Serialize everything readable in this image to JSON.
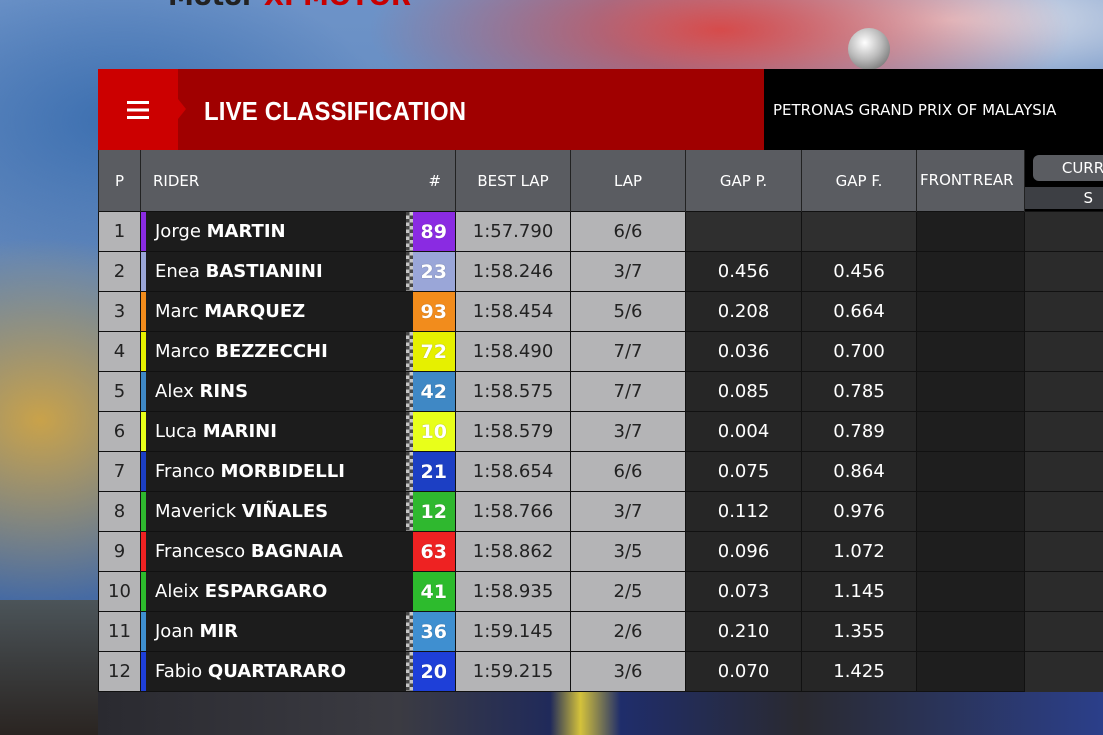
{
  "background": {
    "top_text_dark": "Motor",
    "top_text_red": "XPMOTOR"
  },
  "header": {
    "title": "LIVE CLASSIFICATION",
    "event": "PETRONAS GRAND PRIX OF MALAYSIA",
    "menu_icon": "hamburger-menu-icon"
  },
  "columns": {
    "pos": "P",
    "rider": "RIDER",
    "number": "#",
    "best_lap": "BEST LAP",
    "lap": "LAP",
    "gap_p": "GAP P.",
    "gap_f": "GAP F.",
    "front": "FRONT",
    "rear": "REAR",
    "current": "CURR",
    "current_sub": "S"
  },
  "riders": [
    {
      "pos": "1",
      "first": "Jorge",
      "last": "MARTIN",
      "number": "89",
      "color": "#8a2be2",
      "best_lap": "1:57.790",
      "lap": "6/6",
      "gap_p": "",
      "gap_f": ""
    },
    {
      "pos": "2",
      "first": "Enea",
      "last": "BASTIANINI",
      "number": "23",
      "color": "#9aa6d8",
      "best_lap": "1:58.246",
      "lap": "3/7",
      "gap_p": "0.456",
      "gap_f": "0.456"
    },
    {
      "pos": "3",
      "first": "Marc",
      "last": "MARQUEZ",
      "number": "93",
      "color": "#f28c1c",
      "best_lap": "1:58.454",
      "lap": "5/6",
      "gap_p": "0.208",
      "gap_f": "0.664"
    },
    {
      "pos": "4",
      "first": "Marco",
      "last": "BEZZECCHI",
      "number": "72",
      "color": "#e6f000",
      "best_lap": "1:58.490",
      "lap": "7/7",
      "gap_p": "0.036",
      "gap_f": "0.700"
    },
    {
      "pos": "5",
      "first": "Alex",
      "last": "RINS",
      "number": "42",
      "color": "#3f88c5",
      "best_lap": "1:58.575",
      "lap": "7/7",
      "gap_p": "0.085",
      "gap_f": "0.785"
    },
    {
      "pos": "6",
      "first": "Luca",
      "last": "MARINI",
      "number": "10",
      "color": "#e8ff1a",
      "best_lap": "1:58.579",
      "lap": "3/7",
      "gap_p": "0.004",
      "gap_f": "0.789"
    },
    {
      "pos": "7",
      "first": "Franco",
      "last": "MORBIDELLI",
      "number": "21",
      "color": "#1c3fc4",
      "best_lap": "1:58.654",
      "lap": "6/6",
      "gap_p": "0.075",
      "gap_f": "0.864"
    },
    {
      "pos": "8",
      "first": "Maverick",
      "last": "VIÑALES",
      "number": "12",
      "color": "#2fb82f",
      "best_lap": "1:58.766",
      "lap": "3/7",
      "gap_p": "0.112",
      "gap_f": "0.976"
    },
    {
      "pos": "9",
      "first": "Francesco",
      "last": "BAGNAIA",
      "number": "63",
      "color": "#ee2222",
      "best_lap": "1:58.862",
      "lap": "3/5",
      "gap_p": "0.096",
      "gap_f": "1.072"
    },
    {
      "pos": "10",
      "first": "Aleix",
      "last": "ESPARGARO",
      "number": "41",
      "color": "#2dbb2d",
      "best_lap": "1:58.935",
      "lap": "2/5",
      "gap_p": "0.073",
      "gap_f": "1.145"
    },
    {
      "pos": "11",
      "first": "Joan",
      "last": "MIR",
      "number": "36",
      "color": "#3f8fd0",
      "best_lap": "1:59.145",
      "lap": "2/6",
      "gap_p": "0.210",
      "gap_f": "1.355"
    },
    {
      "pos": "12",
      "first": "Fabio",
      "last": "QUARTARARO",
      "number": "20",
      "color": "#1e3fd8",
      "best_lap": "1:59.215",
      "lap": "3/6",
      "gap_p": "0.070",
      "gap_f": "1.425"
    }
  ],
  "checkered_riders": [
    "1",
    "2",
    "4",
    "5",
    "6",
    "7",
    "8",
    "11",
    "12"
  ]
}
